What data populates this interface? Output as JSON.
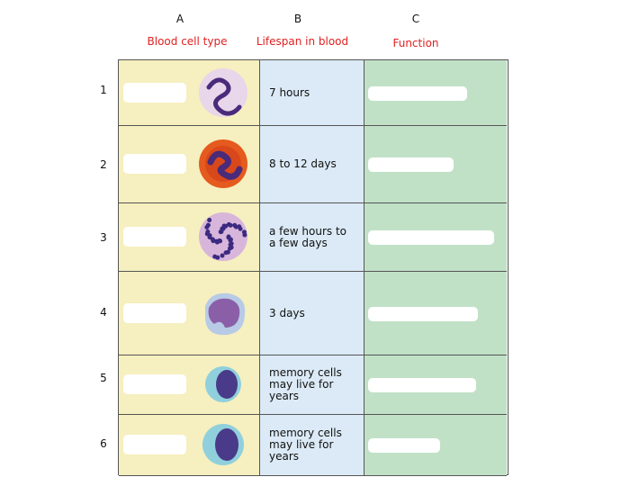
{
  "columns": [
    {
      "letter": "A",
      "header": "Blood cell type"
    },
    {
      "letter": "B",
      "header": "Lifespan in blood"
    },
    {
      "letter": "C",
      "header": "Function"
    }
  ],
  "rows": [
    {
      "number": "1",
      "lifespan": "7 hours"
    },
    {
      "number": "2",
      "lifespan": "8 to 12 days"
    },
    {
      "number": "3",
      "lifespan": "a few hours to a few days"
    },
    {
      "number": "4",
      "lifespan": "3 days"
    },
    {
      "number": "5",
      "lifespan": "memory cells may live for years"
    },
    {
      "number": "6",
      "lifespan": "memory cells may live for years"
    }
  ],
  "colors": {
    "col_a": "#f6efbf",
    "col_b": "#dbeaf6",
    "col_c": "#c1e1c7",
    "header_text": "#e02020"
  }
}
